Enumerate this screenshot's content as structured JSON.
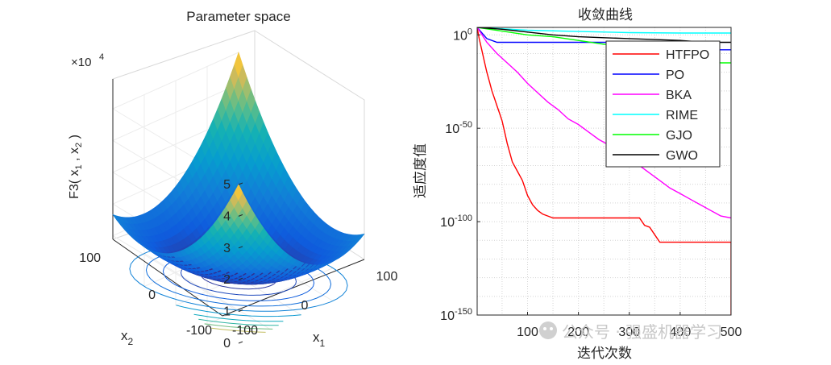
{
  "chart_data": [
    {
      "type": "surface",
      "title": "Parameter space",
      "xlabel": "x",
      "xlabel_sub": "1",
      "ylabel": "x",
      "ylabel_sub": "2",
      "zlabel": {
        "pre": "F3( x",
        "s1": "1",
        "mid": " , x",
        "s2": "2",
        "post": " )"
      },
      "z_exponent": {
        "base": "×10",
        "exp": "4"
      },
      "x_ticks": [
        "-100",
        "0",
        "100"
      ],
      "y_ticks": [
        "-100",
        "0",
        "100"
      ],
      "z_ticks": [
        "0",
        "1",
        "2",
        "3",
        "4",
        "5"
      ],
      "xlim": [
        -100,
        100
      ],
      "ylim": [
        -100,
        100
      ],
      "zlim": [
        0,
        50000
      ],
      "colormap": "parula",
      "contour_projection": true
    },
    {
      "type": "line",
      "title": "收敛曲线",
      "xlabel": "迭代次数",
      "ylabel": "适应度值",
      "y_scale": "log",
      "xlim": [
        1,
        500
      ],
      "ylim_exp": [
        -150,
        4
      ],
      "x_ticks": [
        "100",
        "200",
        "300",
        "400",
        "500"
      ],
      "y_ticks": [
        {
          "base": "10",
          "exp": "0",
          "value": 0
        },
        {
          "base": "10",
          "exp": "-50",
          "value": -50
        },
        {
          "base": "10",
          "exp": "-100",
          "value": -100
        },
        {
          "base": "10",
          "exp": "-150",
          "value": -150
        }
      ],
      "grid": "dotted",
      "legend_position": "top-right",
      "series": [
        {
          "name": "HTFPO",
          "color": "#ff0000",
          "points": [
            [
              1,
              4
            ],
            [
              5,
              -2
            ],
            [
              10,
              -8
            ],
            [
              15,
              -14
            ],
            [
              20,
              -20
            ],
            [
              25,
              -25
            ],
            [
              30,
              -30
            ],
            [
              35,
              -34
            ],
            [
              40,
              -38
            ],
            [
              45,
              -42
            ],
            [
              50,
              -46
            ],
            [
              55,
              -52
            ],
            [
              60,
              -58
            ],
            [
              65,
              -63
            ],
            [
              70,
              -68
            ],
            [
              80,
              -73
            ],
            [
              90,
              -78
            ],
            [
              100,
              -86
            ],
            [
              110,
              -91
            ],
            [
              120,
              -94
            ],
            [
              130,
              -96
            ],
            [
              140,
              -97
            ],
            [
              150,
              -98
            ],
            [
              160,
              -98
            ],
            [
              200,
              -98
            ],
            [
              260,
              -98
            ],
            [
              320,
              -98
            ],
            [
              330,
              -102
            ],
            [
              340,
              -103
            ],
            [
              350,
              -107
            ],
            [
              360,
              -111
            ],
            [
              450,
              -111
            ],
            [
              500,
              -111
            ],
            [
              500,
              -150
            ]
          ]
        },
        {
          "name": "PO",
          "color": "#0000ff",
          "points": [
            [
              1,
              4
            ],
            [
              20,
              -2
            ],
            [
              40,
              -4
            ],
            [
              100,
              -4
            ],
            [
              250,
              -4
            ],
            [
              300,
              -4
            ],
            [
              320,
              -5
            ],
            [
              400,
              -5
            ],
            [
              430,
              -5
            ],
            [
              440,
              -8
            ],
            [
              500,
              -8
            ]
          ]
        },
        {
          "name": "BKA",
          "color": "#ff00ff",
          "points": [
            [
              1,
              4
            ],
            [
              20,
              -4
            ],
            [
              40,
              -10
            ],
            [
              60,
              -15
            ],
            [
              80,
              -20
            ],
            [
              100,
              -26
            ],
            [
              120,
              -31
            ],
            [
              140,
              -36
            ],
            [
              160,
              -40
            ],
            [
              180,
              -45
            ],
            [
              200,
              -48
            ],
            [
              220,
              -52
            ],
            [
              240,
              -56
            ],
            [
              260,
              -59
            ],
            [
              280,
              -63
            ],
            [
              300,
              -67
            ],
            [
              320,
              -70
            ],
            [
              340,
              -74
            ],
            [
              360,
              -78
            ],
            [
              380,
              -82
            ],
            [
              400,
              -85
            ],
            [
              420,
              -88
            ],
            [
              440,
              -91
            ],
            [
              460,
              -94
            ],
            [
              480,
              -97
            ],
            [
              500,
              -98
            ]
          ]
        },
        {
          "name": "RIME",
          "color": "#00ffff",
          "points": [
            [
              1,
              4
            ],
            [
              100,
              2.5
            ],
            [
              200,
              1.8
            ],
            [
              300,
              1.2
            ],
            [
              400,
              1
            ],
            [
              500,
              1
            ]
          ]
        },
        {
          "name": "GJO",
          "color": "#00ff00",
          "points": [
            [
              1,
              4
            ],
            [
              50,
              2
            ],
            [
              100,
              0
            ],
            [
              150,
              -1
            ],
            [
              200,
              -3
            ],
            [
              250,
              -5
            ],
            [
              300,
              -6
            ],
            [
              350,
              -8
            ],
            [
              400,
              -10
            ],
            [
              450,
              -14
            ],
            [
              480,
              -15
            ],
            [
              500,
              -15
            ]
          ]
        },
        {
          "name": "GWO",
          "color": "#000000",
          "points": [
            [
              1,
              4
            ],
            [
              50,
              3
            ],
            [
              100,
              1.5
            ],
            [
              150,
              0
            ],
            [
              200,
              -1
            ],
            [
              250,
              -1.5
            ],
            [
              300,
              -2
            ],
            [
              350,
              -2.5
            ],
            [
              400,
              -3
            ],
            [
              450,
              -4
            ],
            [
              500,
              -4
            ]
          ]
        }
      ]
    }
  ],
  "watermark": "公众号 · 强盛机器学习"
}
